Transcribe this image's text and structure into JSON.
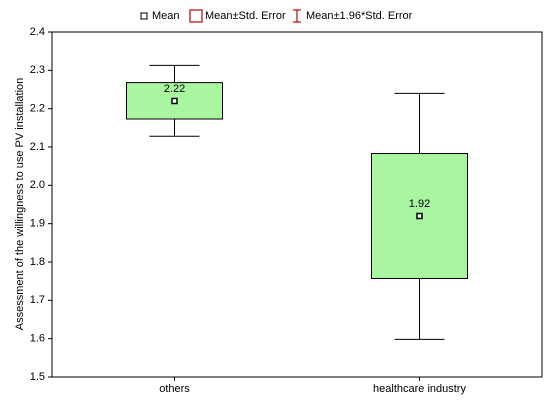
{
  "chart_data": {
    "type": "box",
    "y_label": "Assessment of the willingness to use PV installation",
    "legend": [
      "Mean",
      "Mean±Std. Error",
      "Mean±1.96*Std. Error"
    ],
    "categories": [
      "others",
      "healthcare industry"
    ],
    "mean": [
      2.22,
      1.92
    ],
    "se_low": [
      2.173,
      1.757
    ],
    "se_high": [
      2.268,
      2.083
    ],
    "ci_low": [
      2.128,
      1.598
    ],
    "ci_high": [
      2.313,
      2.24
    ],
    "box_color": "#aaf5a0",
    "legend_color": "#c00000",
    "ylim": [
      1.5,
      2.4
    ],
    "yticks": [
      1.5,
      1.6,
      1.7,
      1.8,
      1.9,
      {
        "value": 2,
        "label": "2.0"
      },
      2.1,
      2.2,
      2.3,
      2.4
    ]
  }
}
